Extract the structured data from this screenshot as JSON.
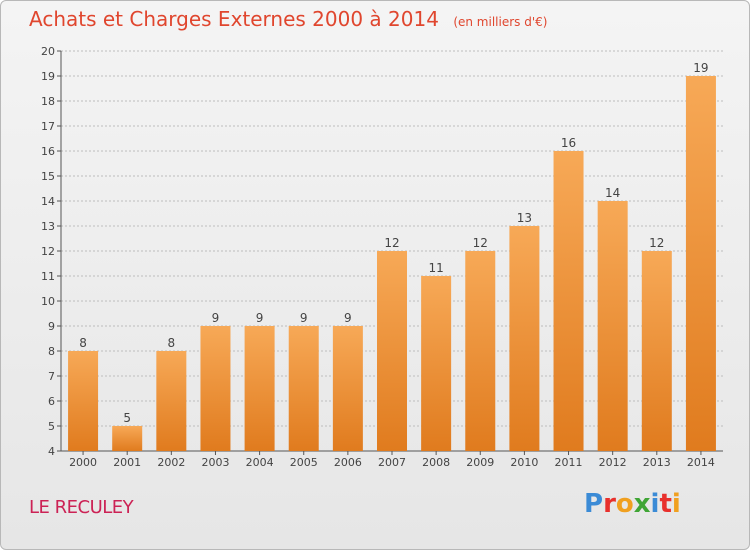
{
  "title": "Achats et Charges Externes 2000 à 2014",
  "unit_note": "(en milliers d'€)",
  "place_name": "LE RECULEY",
  "logo": {
    "letters": [
      "P",
      "r",
      "o",
      "x",
      "i",
      "t",
      "i"
    ],
    "colors": [
      "#3b8bd6",
      "#e8302c",
      "#f0a020",
      "#3fa535",
      "#3b8bd6",
      "#e8302c",
      "#f0a020"
    ]
  },
  "colors": {
    "bar": "#f08a2c",
    "bar_light": "#f7a957",
    "axis": "#555555",
    "grid": "#bbbbbb"
  },
  "chart_data": {
    "type": "bar",
    "title": "Achats et Charges Externes 2000 à 2014",
    "xlabel": "",
    "ylabel": "",
    "ylim": [
      4,
      20
    ],
    "yticks": [
      4,
      5,
      6,
      7,
      8,
      9,
      10,
      11,
      12,
      13,
      14,
      15,
      16,
      17,
      18,
      19,
      20
    ],
    "categories": [
      "2000",
      "2001",
      "2002",
      "2003",
      "2004",
      "2005",
      "2006",
      "2007",
      "2008",
      "2009",
      "2010",
      "2011",
      "2012",
      "2013",
      "2014"
    ],
    "values": [
      8,
      5,
      8,
      9,
      9,
      9,
      9,
      12,
      11,
      12,
      13,
      16,
      14,
      12,
      19
    ]
  }
}
